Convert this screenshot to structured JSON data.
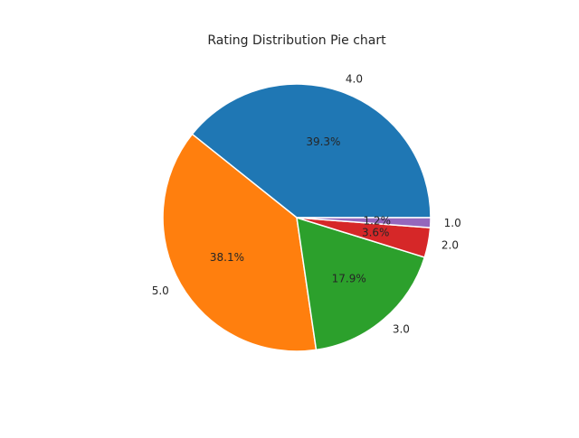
{
  "chart_data": {
    "type": "pie",
    "title": "Rating Distribution Pie chart",
    "categories": [
      "4.0",
      "5.0",
      "3.0",
      "2.0",
      "1.0"
    ],
    "values": [
      39.3,
      38.1,
      17.9,
      3.6,
      1.2
    ],
    "percent_labels": [
      "39.3%",
      "38.1%",
      "17.9%",
      "3.6%",
      "1.2%"
    ],
    "colors": [
      "#1f77b4",
      "#ff7f0e",
      "#2ca02c",
      "#d62728",
      "#9467bd"
    ],
    "start_angle_deg": 0,
    "direction": "counterclockwise"
  }
}
